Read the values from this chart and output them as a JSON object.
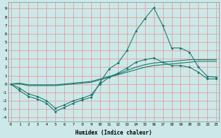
{
  "xlabel": "Humidex (Indice chaleur)",
  "background_color": "#cce8e8",
  "grid_color": "#e89090",
  "line_color": "#1a7a6e",
  "x_values": [
    0,
    1,
    2,
    3,
    4,
    5,
    6,
    7,
    8,
    9,
    10,
    11,
    12,
    13,
    14,
    15,
    16,
    17,
    18,
    19,
    20,
    21,
    22,
    23
  ],
  "series": [
    [
      0,
      -0.8,
      -1.5,
      -1.8,
      -2.3,
      -3.3,
      -2.8,
      -2.3,
      -1.9,
      -1.6,
      0.2,
      1.8,
      2.5,
      4.0,
      6.3,
      7.8,
      9.1,
      7.0,
      4.3,
      4.3,
      3.8,
      2.0,
      0.9,
      0.8
    ],
    [
      0,
      -0.5,
      -1.2,
      -1.5,
      -2.0,
      -2.9,
      -2.5,
      -2.0,
      -1.7,
      -1.3,
      0.0,
      0.8,
      1.3,
      1.9,
      2.6,
      2.9,
      3.1,
      2.6,
      2.2,
      2.2,
      2.0,
      1.4,
      0.6,
      0.6
    ],
    [
      0,
      0.0,
      -0.2,
      -0.2,
      -0.2,
      -0.2,
      -0.1,
      0.0,
      0.1,
      0.2,
      0.5,
      0.8,
      1.1,
      1.4,
      1.7,
      2.0,
      2.2,
      2.3,
      2.4,
      2.5,
      2.6,
      2.7,
      2.7,
      2.7
    ],
    [
      0,
      0.1,
      -0.1,
      -0.1,
      -0.1,
      -0.1,
      0.0,
      0.1,
      0.2,
      0.3,
      0.6,
      0.9,
      1.2,
      1.6,
      2.0,
      2.3,
      2.5,
      2.6,
      2.7,
      2.8,
      2.9,
      2.9,
      2.9,
      2.9
    ]
  ],
  "ylim": [
    -4.5,
    9.8
  ],
  "xlim": [
    -0.3,
    23.3
  ],
  "yticks": [
    -4,
    -3,
    -2,
    -1,
    0,
    1,
    2,
    3,
    4,
    5,
    6,
    7,
    8,
    9
  ],
  "xticks": [
    0,
    1,
    2,
    3,
    4,
    5,
    6,
    7,
    8,
    9,
    10,
    11,
    12,
    13,
    14,
    15,
    16,
    17,
    18,
    19,
    20,
    21,
    22,
    23
  ],
  "marker_series": [
    0,
    1
  ],
  "line_series": [
    2,
    3
  ]
}
